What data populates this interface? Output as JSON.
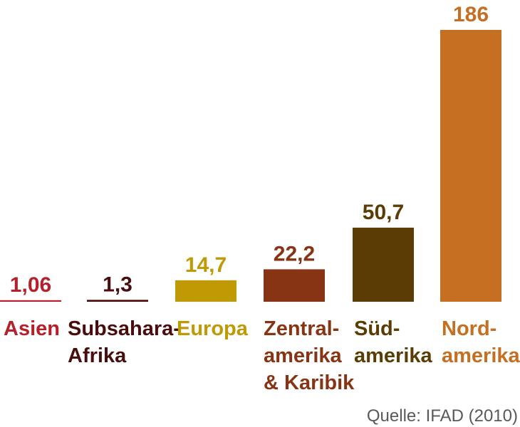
{
  "chart_data": {
    "type": "bar",
    "categories": [
      {
        "lines": [
          "Asien"
        ],
        "value_label": "1,06",
        "color": "#b5202b"
      },
      {
        "lines": [
          "Subsahara-",
          "Afrika"
        ],
        "value_label": "1,3",
        "color": "#4a0d0d"
      },
      {
        "lines": [
          "Europa"
        ],
        "value_label": "14,7",
        "color": "#bf9a05"
      },
      {
        "lines": [
          "Zentral-",
          "amerika",
          "& Karibik"
        ],
        "value_label": "22,2",
        "color": "#873415"
      },
      {
        "lines": [
          "Süd-",
          "amerika"
        ],
        "value_label": "50,7",
        "color": "#5a3c04"
      },
      {
        "lines": [
          "Nord-",
          "amerika"
        ],
        "value_label": "186",
        "color": "#c46f22"
      }
    ],
    "values": [
      1.06,
      1.3,
      14.7,
      22.2,
      50.7,
      186
    ],
    "ylim": [
      0,
      186
    ],
    "grid": false,
    "legend": "none"
  },
  "source": "Quelle: IFAD (2010)"
}
